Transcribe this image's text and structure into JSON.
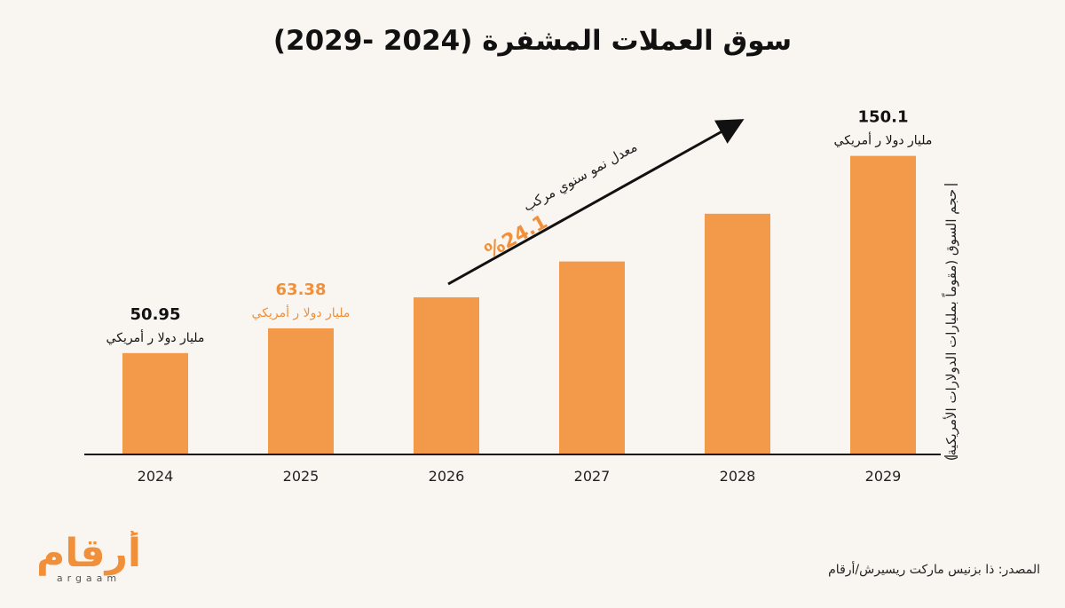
{
  "title": "سوق العملات المشفرة (2024 -2029)",
  "ylabel": "حجم السوق (مقوماً بمليارات الدولارات الأمريكية)",
  "source": "المصدر: ذا بزنيس ماركت ريسيرش/أرقام",
  "logo": {
    "arabic": "أرقام",
    "latin": "argaam"
  },
  "colors": {
    "bar": "#f2994a",
    "highlight": "#f0903a",
    "text": "#111111",
    "background": "#f9f6f1"
  },
  "chart_data": {
    "type": "bar",
    "categories": [
      "2024",
      "2025",
      "2026",
      "2027",
      "2028",
      "2029"
    ],
    "values": [
      50.95,
      63.38,
      79,
      97,
      121,
      150.1
    ],
    "ylim": [
      0,
      170
    ],
    "grid": false,
    "data_labels": [
      {
        "index": 0,
        "value": "50.95",
        "unit": "مليار دولا ر أمريكي",
        "highlight": false
      },
      {
        "index": 1,
        "value": "63.38",
        "unit": "مليار دولا ر أمريكي",
        "highlight": true
      },
      {
        "index": 5,
        "value": "150.1",
        "unit": "مليار دولا ر أمريكي",
        "highlight": false
      }
    ],
    "annotation": {
      "text": "معدل نمو سنوي مركب",
      "value": "%24.1"
    }
  }
}
